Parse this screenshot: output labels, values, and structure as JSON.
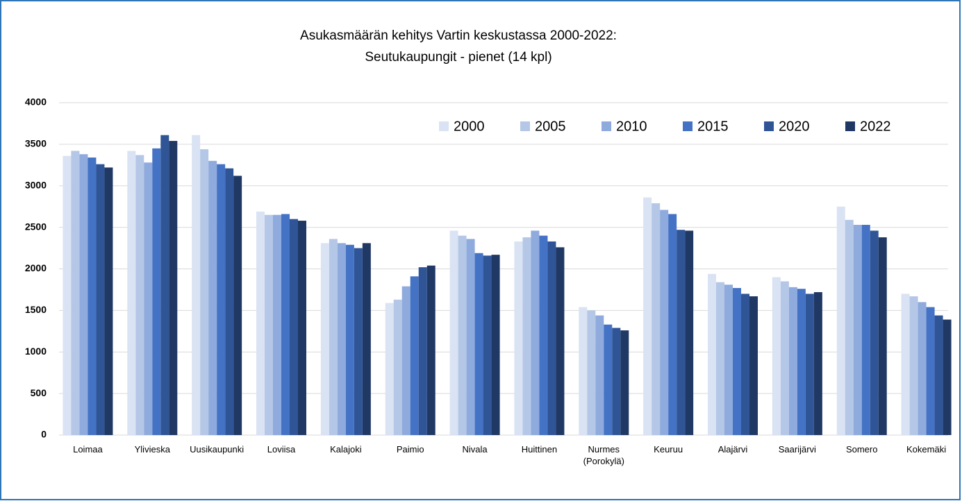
{
  "chart_data": {
    "type": "bar",
    "title": "Asukasmäärän kehitys Vartin keskustassa 2000-2022:",
    "subtitle": "Seutukaupungit  - pienet (14 kpl)",
    "categories": [
      "Loimaa",
      "Ylivieska",
      "Uusikaupunki",
      "Loviisa",
      "Kalajoki",
      "Paimio",
      "Nivala",
      "Huittinen",
      "Nurmes (Porokylä)",
      "Keuruu",
      "Alajärvi",
      "Saarijärvi",
      "Somero",
      "Kokemäki"
    ],
    "series": [
      {
        "name": "2000",
        "color": "#dae3f3",
        "values": [
          3360,
          3420,
          3610,
          2690,
          2310,
          1590,
          2460,
          2330,
          1540,
          2860,
          1940,
          1900,
          2750,
          1700
        ]
      },
      {
        "name": "2005",
        "color": "#b4c7e7",
        "values": [
          3420,
          3370,
          3440,
          2650,
          2360,
          1630,
          2400,
          2380,
          1500,
          2790,
          1840,
          1850,
          2590,
          1670
        ]
      },
      {
        "name": "2010",
        "color": "#8faadc",
        "values": [
          3380,
          3280,
          3300,
          2650,
          2310,
          1790,
          2360,
          2460,
          1440,
          2710,
          1810,
          1780,
          2530,
          1600
        ]
      },
      {
        "name": "2015",
        "color": "#4472c4",
        "values": [
          3340,
          3450,
          3260,
          2660,
          2290,
          1910,
          2190,
          2400,
          1330,
          2660,
          1770,
          1760,
          2530,
          1540
        ]
      },
      {
        "name": "2020",
        "color": "#2f5597",
        "values": [
          3260,
          3610,
          3210,
          2600,
          2250,
          2020,
          2160,
          2330,
          1290,
          2470,
          1700,
          1700,
          2460,
          1440
        ]
      },
      {
        "name": "2022",
        "color": "#203864",
        "values": [
          3220,
          3540,
          3120,
          2580,
          2310,
          2040,
          2170,
          2260,
          1260,
          2460,
          1670,
          1720,
          2380,
          1390
        ]
      }
    ],
    "ylim": [
      0,
      4000
    ],
    "yticks": [
      0,
      500,
      1000,
      1500,
      2000,
      2500,
      3000,
      3500,
      4000
    ],
    "grid": true,
    "legend": "top-right"
  }
}
